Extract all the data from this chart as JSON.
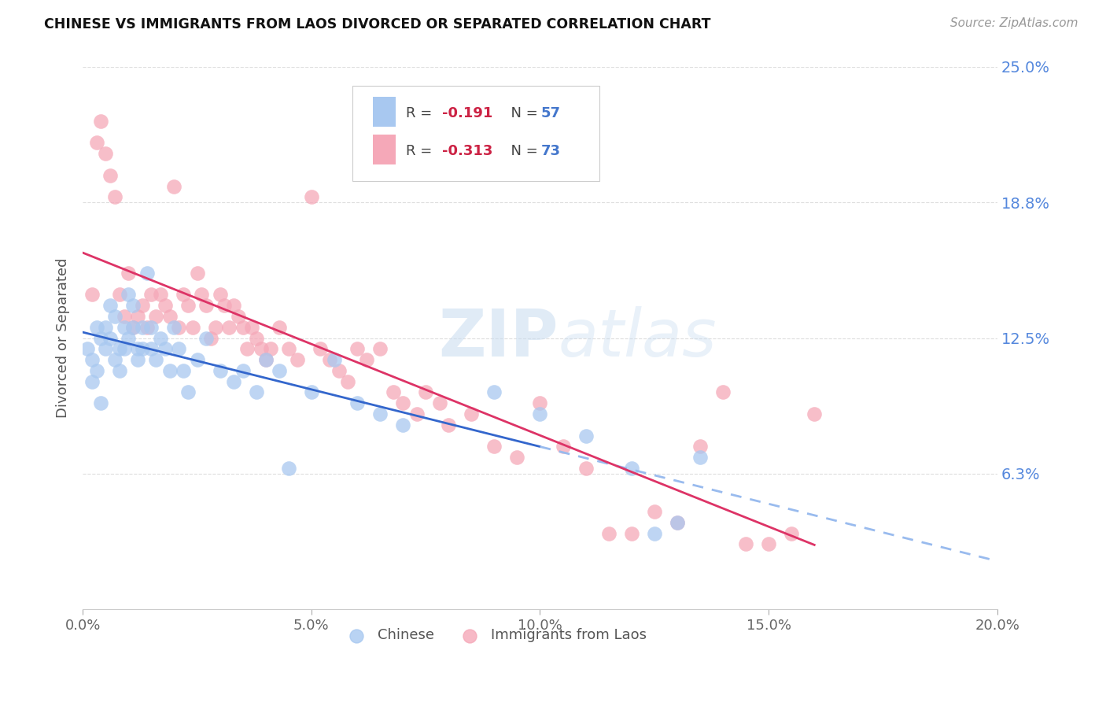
{
  "title": "CHINESE VS IMMIGRANTS FROM LAOS DIVORCED OR SEPARATED CORRELATION CHART",
  "source": "Source: ZipAtlas.com",
  "ylabel_label": "Divorced or Separated",
  "watermark": "ZIPatlas",
  "chinese_color": "#A8C8F0",
  "laos_color": "#F5A8B8",
  "trend_chinese_color": "#3366CC",
  "trend_laos_color": "#DD3366",
  "trend_chinese_dashed_color": "#99BBEE",
  "xlim": [
    0.0,
    0.2
  ],
  "ylim": [
    0.0,
    0.25
  ],
  "yticks": [
    0.0,
    0.0625,
    0.125,
    0.1875,
    0.25
  ],
  "ytick_labels": [
    "",
    "6.3%",
    "12.5%",
    "18.8%",
    "25.0%"
  ],
  "xticks": [
    0.0,
    0.05,
    0.1,
    0.15,
    0.2
  ],
  "xtick_labels": [
    "0.0%",
    "5.0%",
    "10.0%",
    "15.0%",
    "20.0%"
  ],
  "R_chinese": -0.191,
  "N_chinese": 57,
  "R_laos": -0.313,
  "N_laos": 73,
  "chinese_x": [
    0.001,
    0.002,
    0.002,
    0.003,
    0.003,
    0.004,
    0.004,
    0.005,
    0.005,
    0.006,
    0.006,
    0.007,
    0.007,
    0.008,
    0.008,
    0.009,
    0.009,
    0.01,
    0.01,
    0.011,
    0.011,
    0.012,
    0.012,
    0.013,
    0.013,
    0.014,
    0.015,
    0.015,
    0.016,
    0.017,
    0.018,
    0.019,
    0.02,
    0.021,
    0.022,
    0.023,
    0.025,
    0.027,
    0.03,
    0.033,
    0.035,
    0.038,
    0.04,
    0.043,
    0.045,
    0.05,
    0.055,
    0.06,
    0.065,
    0.07,
    0.09,
    0.1,
    0.11,
    0.12,
    0.125,
    0.13,
    0.135
  ],
  "chinese_y": [
    0.12,
    0.115,
    0.105,
    0.13,
    0.11,
    0.125,
    0.095,
    0.13,
    0.12,
    0.14,
    0.125,
    0.115,
    0.135,
    0.12,
    0.11,
    0.13,
    0.12,
    0.145,
    0.125,
    0.14,
    0.13,
    0.12,
    0.115,
    0.13,
    0.12,
    0.155,
    0.13,
    0.12,
    0.115,
    0.125,
    0.12,
    0.11,
    0.13,
    0.12,
    0.11,
    0.1,
    0.115,
    0.125,
    0.11,
    0.105,
    0.11,
    0.1,
    0.115,
    0.11,
    0.065,
    0.1,
    0.115,
    0.095,
    0.09,
    0.085,
    0.1,
    0.09,
    0.08,
    0.065,
    0.035,
    0.04,
    0.07
  ],
  "laos_x": [
    0.002,
    0.003,
    0.004,
    0.005,
    0.006,
    0.007,
    0.008,
    0.009,
    0.01,
    0.011,
    0.012,
    0.013,
    0.014,
    0.015,
    0.016,
    0.017,
    0.018,
    0.019,
    0.02,
    0.021,
    0.022,
    0.023,
    0.024,
    0.025,
    0.026,
    0.027,
    0.028,
    0.029,
    0.03,
    0.031,
    0.032,
    0.033,
    0.034,
    0.035,
    0.036,
    0.037,
    0.038,
    0.039,
    0.04,
    0.041,
    0.043,
    0.045,
    0.047,
    0.05,
    0.052,
    0.054,
    0.056,
    0.058,
    0.06,
    0.062,
    0.065,
    0.068,
    0.07,
    0.073,
    0.075,
    0.078,
    0.08,
    0.085,
    0.09,
    0.095,
    0.1,
    0.105,
    0.11,
    0.115,
    0.12,
    0.125,
    0.13,
    0.135,
    0.14,
    0.145,
    0.15,
    0.155,
    0.16
  ],
  "laos_y": [
    0.145,
    0.215,
    0.225,
    0.21,
    0.2,
    0.19,
    0.145,
    0.135,
    0.155,
    0.13,
    0.135,
    0.14,
    0.13,
    0.145,
    0.135,
    0.145,
    0.14,
    0.135,
    0.195,
    0.13,
    0.145,
    0.14,
    0.13,
    0.155,
    0.145,
    0.14,
    0.125,
    0.13,
    0.145,
    0.14,
    0.13,
    0.14,
    0.135,
    0.13,
    0.12,
    0.13,
    0.125,
    0.12,
    0.115,
    0.12,
    0.13,
    0.12,
    0.115,
    0.19,
    0.12,
    0.115,
    0.11,
    0.105,
    0.12,
    0.115,
    0.12,
    0.1,
    0.095,
    0.09,
    0.1,
    0.095,
    0.085,
    0.09,
    0.075,
    0.07,
    0.095,
    0.075,
    0.065,
    0.035,
    0.035,
    0.045,
    0.04,
    0.075,
    0.1,
    0.03,
    0.03,
    0.035,
    0.09
  ]
}
